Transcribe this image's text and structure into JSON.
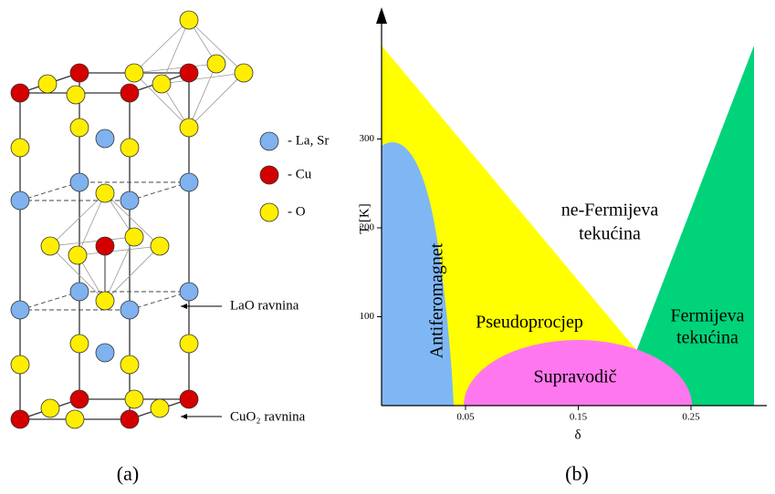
{
  "panel_a": {
    "legend": [
      "- La, Sr",
      "- Cu",
      "- O"
    ],
    "plane_labels": [
      "LaO ravnina",
      "CuO₂ ravnina"
    ],
    "caption": "(a)"
  },
  "panel_b": {
    "y_label": "T [K]",
    "x_label": "δ",
    "yticks": [
      100,
      200,
      300
    ],
    "xticks": [
      0.05,
      0.15,
      0.25
    ],
    "regions": [
      "ne-Fermijeva",
      "tekućina",
      "Pseudoprocjep",
      "Antiferomagnet",
      "Supravodič",
      "Fermijeva",
      "tekućina"
    ],
    "caption": "(b)"
  }
}
